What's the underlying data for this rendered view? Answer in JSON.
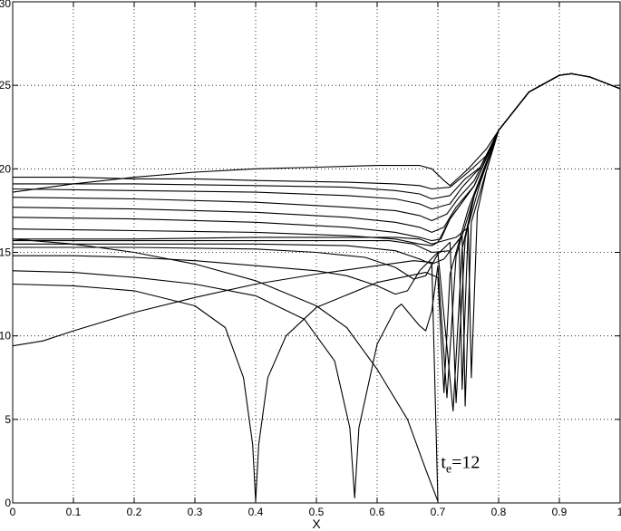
{
  "chart_data": {
    "type": "line",
    "title": "",
    "xlabel": "X",
    "ylabel": "",
    "xlim": [
      0,
      1
    ],
    "ylim": [
      0,
      30
    ],
    "grid": true,
    "grid_style": "dotted",
    "xticks": [
      0,
      0.1,
      0.2,
      0.3,
      0.4,
      0.5,
      0.6,
      0.7,
      0.8,
      0.9,
      1
    ],
    "xtick_labels": [
      "0",
      "0.1",
      "0.2",
      "0.3",
      "0.4",
      "0.5",
      "0.6",
      "0.7",
      "0.8",
      "0.9",
      "1"
    ],
    "yticks": [
      0,
      5,
      10,
      15,
      20,
      25,
      30
    ],
    "ytick_labels": [
      "0",
      "5",
      "10",
      "15",
      "20",
      "25",
      "30"
    ],
    "line_color": "#000000",
    "annotation": {
      "main": "t",
      "subscript": "e",
      "suffix": "=12",
      "x": 0.705,
      "y": 2.1
    },
    "series": [
      {
        "values": [
          [
            0,
            9.4
          ],
          [
            0.05,
            9.7
          ],
          [
            0.1,
            10.3
          ],
          [
            0.2,
            11.4
          ],
          [
            0.3,
            12.3
          ],
          [
            0.4,
            13.1
          ],
          [
            0.5,
            13.7
          ],
          [
            0.6,
            14.2
          ],
          [
            0.66,
            14.5
          ],
          [
            0.69,
            14.4
          ],
          [
            0.7,
            0.1
          ]
        ]
      },
      {
        "values": [
          [
            0,
            13.1
          ],
          [
            0.1,
            13.0
          ],
          [
            0.2,
            12.7
          ],
          [
            0.3,
            11.8
          ],
          [
            0.35,
            10.5
          ],
          [
            0.38,
            7.5
          ],
          [
            0.395,
            3.5
          ],
          [
            0.4,
            0.1
          ],
          [
            0.405,
            3.5
          ],
          [
            0.42,
            7.5
          ],
          [
            0.45,
            10.0
          ],
          [
            0.5,
            11.7
          ],
          [
            0.6,
            13.2
          ],
          [
            0.68,
            13.8
          ],
          [
            0.7,
            13.5
          ],
          [
            0.71,
            6.6
          ],
          [
            0.72,
            13.7
          ],
          [
            0.75,
            17.6
          ],
          [
            0.8,
            22.3
          ],
          [
            0.85,
            24.6
          ],
          [
            0.9,
            25.6
          ],
          [
            0.92,
            25.7
          ],
          [
            0.95,
            25.5
          ],
          [
            1,
            24.8
          ]
        ]
      },
      {
        "values": [
          [
            0,
            13.9
          ],
          [
            0.1,
            13.8
          ],
          [
            0.2,
            13.5
          ],
          [
            0.3,
            13.1
          ],
          [
            0.4,
            12.4
          ],
          [
            0.48,
            11.0
          ],
          [
            0.53,
            8.5
          ],
          [
            0.555,
            4.5
          ],
          [
            0.563,
            0.3
          ],
          [
            0.57,
            4.5
          ],
          [
            0.6,
            9.5
          ],
          [
            0.63,
            11.6
          ],
          [
            0.64,
            11.9
          ],
          [
            0.67,
            10.6
          ],
          [
            0.68,
            10.3
          ],
          [
            0.69,
            11.5
          ],
          [
            0.7,
            14.2
          ],
          [
            0.715,
            6.3
          ],
          [
            0.73,
            14.8
          ],
          [
            0.76,
            18.4
          ],
          [
            0.8,
            22.3
          ],
          [
            0.85,
            24.6
          ],
          [
            0.9,
            25.6
          ],
          [
            0.92,
            25.7
          ],
          [
            0.95,
            25.5
          ],
          [
            1,
            24.8
          ]
        ]
      },
      {
        "values": [
          [
            0,
            14.8
          ],
          [
            0.1,
            14.8
          ],
          [
            0.2,
            14.7
          ],
          [
            0.3,
            14.5
          ],
          [
            0.4,
            14.2
          ],
          [
            0.5,
            13.9
          ],
          [
            0.55,
            13.6
          ],
          [
            0.6,
            13.0
          ],
          [
            0.63,
            12.5
          ],
          [
            0.65,
            12.7
          ],
          [
            0.67,
            13.9
          ],
          [
            0.7,
            15.0
          ],
          [
            0.725,
            5.5
          ],
          [
            0.74,
            15.2
          ],
          [
            0.76,
            18.4
          ],
          [
            0.8,
            22.3
          ],
          [
            0.85,
            24.6
          ],
          [
            0.9,
            25.6
          ],
          [
            0.92,
            25.7
          ],
          [
            0.95,
            25.5
          ],
          [
            1,
            24.8
          ]
        ]
      },
      {
        "values": [
          [
            0,
            15.3
          ],
          [
            0.2,
            15.3
          ],
          [
            0.4,
            15.2
          ],
          [
            0.5,
            15.0
          ],
          [
            0.58,
            14.7
          ],
          [
            0.63,
            14.1
          ],
          [
            0.66,
            13.4
          ],
          [
            0.68,
            13.6
          ],
          [
            0.7,
            14.9
          ],
          [
            0.72,
            15.6
          ],
          [
            0.73,
            6.0
          ],
          [
            0.745,
            15.8
          ],
          [
            0.76,
            18.4
          ],
          [
            0.8,
            22.3
          ],
          [
            0.85,
            24.6
          ],
          [
            0.9,
            25.6
          ],
          [
            0.92,
            25.7
          ],
          [
            0.95,
            25.5
          ],
          [
            1,
            24.8
          ]
        ]
      },
      {
        "values": [
          [
            0,
            15.5
          ],
          [
            0.2,
            15.5
          ],
          [
            0.4,
            15.5
          ],
          [
            0.55,
            15.4
          ],
          [
            0.63,
            15.1
          ],
          [
            0.67,
            14.6
          ],
          [
            0.69,
            14.3
          ],
          [
            0.71,
            14.6
          ],
          [
            0.735,
            15.8
          ],
          [
            0.74,
            6.8
          ],
          [
            0.75,
            16.6
          ],
          [
            0.77,
            19.2
          ],
          [
            0.8,
            22.3
          ],
          [
            0.85,
            24.6
          ],
          [
            0.9,
            25.6
          ],
          [
            0.92,
            25.7
          ],
          [
            0.95,
            25.5
          ],
          [
            1,
            24.8
          ]
        ]
      },
      {
        "values": [
          [
            0,
            15.7
          ],
          [
            0.2,
            15.7
          ],
          [
            0.4,
            15.7
          ],
          [
            0.55,
            15.7
          ],
          [
            0.62,
            15.7
          ],
          [
            0.66,
            15.5
          ],
          [
            0.69,
            15.0
          ],
          [
            0.72,
            15.1
          ],
          [
            0.74,
            16.0
          ],
          [
            0.745,
            5.8
          ],
          [
            0.755,
            16.8
          ],
          [
            0.78,
            19.9
          ],
          [
            0.8,
            22.3
          ],
          [
            0.85,
            24.6
          ],
          [
            0.9,
            25.6
          ],
          [
            0.92,
            25.7
          ],
          [
            0.95,
            25.5
          ],
          [
            1,
            24.8
          ]
        ]
      },
      {
        "values": [
          [
            0,
            15.8
          ],
          [
            0.2,
            15.8
          ],
          [
            0.4,
            15.9
          ],
          [
            0.55,
            15.9
          ],
          [
            0.63,
            15.9
          ],
          [
            0.67,
            15.8
          ],
          [
            0.69,
            15.5
          ],
          [
            0.7,
            15.6
          ],
          [
            0.73,
            15.9
          ],
          [
            0.75,
            16.5
          ],
          [
            0.755,
            7.5
          ],
          [
            0.765,
            17.4
          ],
          [
            0.78,
            19.9
          ],
          [
            0.8,
            22.3
          ],
          [
            0.85,
            24.6
          ],
          [
            0.9,
            25.6
          ],
          [
            0.92,
            25.7
          ],
          [
            0.95,
            25.5
          ],
          [
            1,
            24.8
          ]
        ]
      },
      {
        "values": [
          [
            0,
            15.8
          ],
          [
            0.1,
            15.5
          ],
          [
            0.2,
            15.0
          ],
          [
            0.3,
            14.3
          ],
          [
            0.4,
            13.3
          ],
          [
            0.5,
            11.8
          ],
          [
            0.55,
            10.5
          ],
          [
            0.6,
            8.0
          ],
          [
            0.65,
            5.0
          ],
          [
            0.68,
            2.0
          ],
          [
            0.7,
            0.1
          ]
        ]
      },
      {
        "values": [
          [
            0,
            16.4
          ],
          [
            0.2,
            16.3
          ],
          [
            0.4,
            16.2
          ],
          [
            0.55,
            16.0
          ],
          [
            0.63,
            15.8
          ],
          [
            0.67,
            15.5
          ],
          [
            0.69,
            15.4
          ],
          [
            0.7,
            15.6
          ],
          [
            0.72,
            17.0
          ],
          [
            0.76,
            19.0
          ],
          [
            0.8,
            22.3
          ],
          [
            0.85,
            24.6
          ],
          [
            0.9,
            25.6
          ],
          [
            0.92,
            25.7
          ],
          [
            0.95,
            25.5
          ],
          [
            1,
            24.8
          ]
        ]
      },
      {
        "values": [
          [
            0,
            17.1
          ],
          [
            0.2,
            17.0
          ],
          [
            0.4,
            16.8
          ],
          [
            0.55,
            16.5
          ],
          [
            0.63,
            16.2
          ],
          [
            0.67,
            15.9
          ],
          [
            0.69,
            15.7
          ],
          [
            0.705,
            15.8
          ],
          [
            0.72,
            17.0
          ],
          [
            0.76,
            19.0
          ],
          [
            0.8,
            22.3
          ],
          [
            0.85,
            24.6
          ],
          [
            0.9,
            25.6
          ],
          [
            0.92,
            25.7
          ],
          [
            0.95,
            25.5
          ],
          [
            1,
            24.8
          ]
        ]
      },
      {
        "values": [
          [
            0,
            17.7
          ],
          [
            0.2,
            17.6
          ],
          [
            0.4,
            17.4
          ],
          [
            0.55,
            17.1
          ],
          [
            0.63,
            16.8
          ],
          [
            0.67,
            16.5
          ],
          [
            0.69,
            16.2
          ],
          [
            0.71,
            16.5
          ],
          [
            0.73,
            17.7
          ],
          [
            0.76,
            19.0
          ],
          [
            0.8,
            22.3
          ],
          [
            0.85,
            24.6
          ],
          [
            0.9,
            25.6
          ],
          [
            0.92,
            25.7
          ],
          [
            0.95,
            25.5
          ],
          [
            1,
            24.8
          ]
        ]
      },
      {
        "values": [
          [
            0,
            18.3
          ],
          [
            0.2,
            18.2
          ],
          [
            0.4,
            18.0
          ],
          [
            0.55,
            17.7
          ],
          [
            0.63,
            17.5
          ],
          [
            0.67,
            17.2
          ],
          [
            0.69,
            16.9
          ],
          [
            0.715,
            17.3
          ],
          [
            0.735,
            18.3
          ],
          [
            0.76,
            19.3
          ],
          [
            0.8,
            22.3
          ],
          [
            0.85,
            24.6
          ],
          [
            0.9,
            25.6
          ],
          [
            0.92,
            25.7
          ],
          [
            0.95,
            25.5
          ],
          [
            1,
            24.8
          ]
        ]
      },
      {
        "values": [
          [
            0,
            18.8
          ],
          [
            0.2,
            18.7
          ],
          [
            0.4,
            18.6
          ],
          [
            0.55,
            18.4
          ],
          [
            0.63,
            18.2
          ],
          [
            0.67,
            17.9
          ],
          [
            0.69,
            17.6
          ],
          [
            0.72,
            17.9
          ],
          [
            0.74,
            18.9
          ],
          [
            0.77,
            20.1
          ],
          [
            0.8,
            22.3
          ],
          [
            0.85,
            24.6
          ],
          [
            0.9,
            25.6
          ],
          [
            0.92,
            25.7
          ],
          [
            0.95,
            25.5
          ],
          [
            1,
            24.8
          ]
        ]
      },
      {
        "values": [
          [
            0,
            19.1
          ],
          [
            0.2,
            19.1
          ],
          [
            0.4,
            19.0
          ],
          [
            0.55,
            18.9
          ],
          [
            0.63,
            18.7
          ],
          [
            0.67,
            18.5
          ],
          [
            0.69,
            18.2
          ],
          [
            0.72,
            18.4
          ],
          [
            0.745,
            19.4
          ],
          [
            0.77,
            20.1
          ],
          [
            0.8,
            22.3
          ],
          [
            0.85,
            24.6
          ],
          [
            0.9,
            25.6
          ],
          [
            0.92,
            25.7
          ],
          [
            0.95,
            25.5
          ],
          [
            1,
            24.8
          ]
        ]
      },
      {
        "values": [
          [
            0,
            19.5
          ],
          [
            0.1,
            19.5
          ],
          [
            0.2,
            19.4
          ],
          [
            0.3,
            19.4
          ],
          [
            0.4,
            19.3
          ],
          [
            0.55,
            19.2
          ],
          [
            0.63,
            19.1
          ],
          [
            0.67,
            19.0
          ],
          [
            0.69,
            18.8
          ],
          [
            0.72,
            18.9
          ],
          [
            0.75,
            19.8
          ],
          [
            0.78,
            20.8
          ],
          [
            0.8,
            22.3
          ],
          [
            0.85,
            24.6
          ],
          [
            0.9,
            25.6
          ],
          [
            0.92,
            25.7
          ],
          [
            0.95,
            25.5
          ],
          [
            1,
            24.8
          ]
        ]
      },
      {
        "values": [
          [
            0,
            18.6
          ],
          [
            0.1,
            19.1
          ],
          [
            0.2,
            19.5
          ],
          [
            0.3,
            19.8
          ],
          [
            0.4,
            20.0
          ],
          [
            0.5,
            20.1
          ],
          [
            0.6,
            20.2
          ],
          [
            0.67,
            20.2
          ],
          [
            0.69,
            20.0
          ],
          [
            0.71,
            19.3
          ],
          [
            0.72,
            19.0
          ],
          [
            0.75,
            20.0
          ],
          [
            0.78,
            21.2
          ],
          [
            0.8,
            22.3
          ],
          [
            0.85,
            24.6
          ],
          [
            0.9,
            25.6
          ],
          [
            0.92,
            25.7
          ],
          [
            0.95,
            25.5
          ],
          [
            1,
            24.8
          ]
        ]
      }
    ]
  }
}
